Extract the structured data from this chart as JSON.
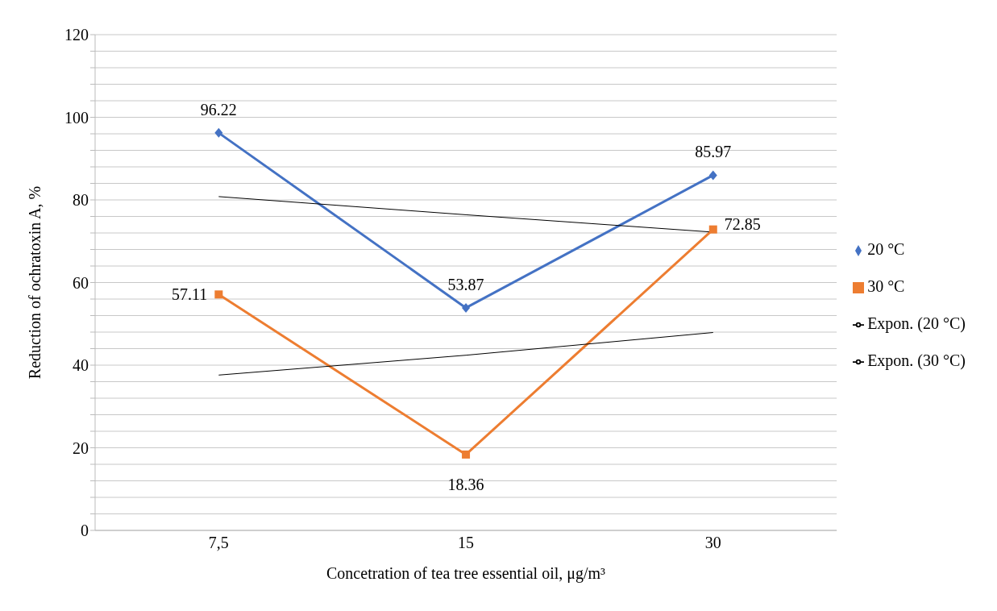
{
  "chart_data": {
    "type": "line",
    "xlabel": "Concetration of tea tree essential oil, μg/m³",
    "ylabel": "Reduction of ochratoxin A, %",
    "categories": [
      "7,5",
      "15",
      "30"
    ],
    "series": [
      {
        "name": "20 °C",
        "color": "#4472c4",
        "marker": "diamond",
        "values": [
          96.22,
          53.87,
          85.97
        ],
        "value_labels": [
          "96.22",
          "53.87",
          "85.97"
        ]
      },
      {
        "name": "30 °C",
        "color": "#ed7d31",
        "marker": "square",
        "values": [
          57.11,
          18.36,
          72.85
        ],
        "value_labels": [
          "57.11",
          "18.36",
          "72.85"
        ]
      },
      {
        "name": "Expon. (20 °C)",
        "color": "#000000",
        "marker": "none",
        "values": [
          80.8,
          76.4,
          72.2
        ]
      },
      {
        "name": "Expon. (30 °C)",
        "color": "#000000",
        "marker": "none",
        "values": [
          37.6,
          42.4,
          47.9
        ]
      }
    ],
    "ylim": [
      0,
      120
    ],
    "yticks": [
      0,
      {
        "value": 4,
        "label": null
      },
      {
        "value": 8,
        "label": null
      },
      {
        "value": 12,
        "label": null
      },
      {
        "value": 16,
        "label": null
      },
      20,
      {
        "value": 24,
        "label": null
      },
      {
        "value": 28,
        "label": null
      },
      {
        "value": 32,
        "label": null
      },
      {
        "value": 36,
        "label": null
      },
      40,
      {
        "value": 44,
        "label": null
      },
      {
        "value": 48,
        "label": null
      },
      {
        "value": 52,
        "label": null
      },
      {
        "value": 56,
        "label": null
      },
      60,
      {
        "value": 64,
        "label": null
      },
      {
        "value": 68,
        "label": null
      },
      {
        "value": 72,
        "label": null
      },
      {
        "value": 76,
        "label": null
      },
      80,
      {
        "value": 84,
        "label": null
      },
      {
        "value": 88,
        "label": null
      },
      {
        "value": 92,
        "label": null
      },
      {
        "value": 96,
        "label": null
      },
      100,
      {
        "value": 104,
        "label": null
      },
      {
        "value": 108,
        "label": null
      },
      {
        "value": 112,
        "label": null
      },
      {
        "value": 116,
        "label": null
      },
      120
    ],
    "grid": "y",
    "legend": "right"
  }
}
